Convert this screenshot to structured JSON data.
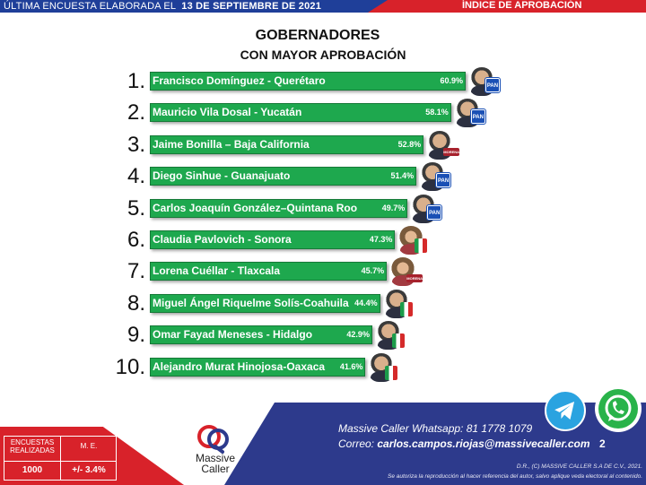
{
  "header": {
    "survey_text": "ÚLTIMA ENCUESTA ELABORADA EL",
    "survey_date": "13 DE SEPTIEMBRE DE 2021",
    "index_title": "ÍNDICE DE APROBACIÓN"
  },
  "title_line1": "GOBERNADORES",
  "title_line2": "CON MAYOR APROBACIÓN",
  "chart_data": {
    "type": "bar",
    "orientation": "horizontal",
    "title": "GOBERNADORES CON MAYOR APROBACIÓN",
    "xlabel": "",
    "ylabel": "",
    "xlim": [
      0,
      70
    ],
    "categories": [
      "Francisco Domínguez - Querétaro",
      "Mauricio Vila Dosal - Yucatán",
      "Jaime Bonilla – Baja California",
      "Diego Sinhue - Guanajuato",
      "Carlos Joaquín González–Quintana Roo",
      "Claudia Pavlovich - Sonora",
      "Lorena Cuéllar - Tlaxcala",
      "Miguel Ángel Riquelme Solís-Coahuila",
      "Omar Fayad Meneses - Hidalgo",
      "Alejandro Murat Hinojosa-Oaxaca"
    ],
    "ranks": [
      "1.",
      "2.",
      "3.",
      "4.",
      "5.",
      "6.",
      "7.",
      "8.",
      "9.",
      "10."
    ],
    "values": [
      60.9,
      58.1,
      52.8,
      51.4,
      49.7,
      47.3,
      45.7,
      44.4,
      42.9,
      41.6
    ],
    "value_labels": [
      "60.9%",
      "58.1%",
      "52.8%",
      "51.4%",
      "49.7%",
      "47.3%",
      "45.7%",
      "44.4%",
      "42.9%",
      "41.6%"
    ],
    "parties": [
      "pan",
      "pan",
      "morena",
      "pan",
      "pan",
      "pri",
      "morena",
      "pri",
      "pri",
      "pri"
    ],
    "colors": {
      "bar": "#1ea84e"
    }
  },
  "footer": {
    "stats": {
      "surveys_label_1": "ENCUESTAS",
      "surveys_label_2": "REALIZADAS",
      "surveys_value": "1000",
      "me_label": "M. E.",
      "me_value": "+/- 3.4%"
    },
    "logo_line1": "Massive",
    "logo_line2": "Caller",
    "whatsapp_label": "Massive Caller Whatsapp:",
    "whatsapp_number": "81 1778 1079",
    "email_label": "Correo:",
    "email": "carlos.campos.riojas@massivecaller.com",
    "page": "2",
    "legal_1": "D.R., (C) MASSIVE CALLER S.A DE C.V., 2021.",
    "legal_2": "Se autoriza la reproducción al hacer referencia del autor, salvo aplique veda electoral al contenido."
  }
}
